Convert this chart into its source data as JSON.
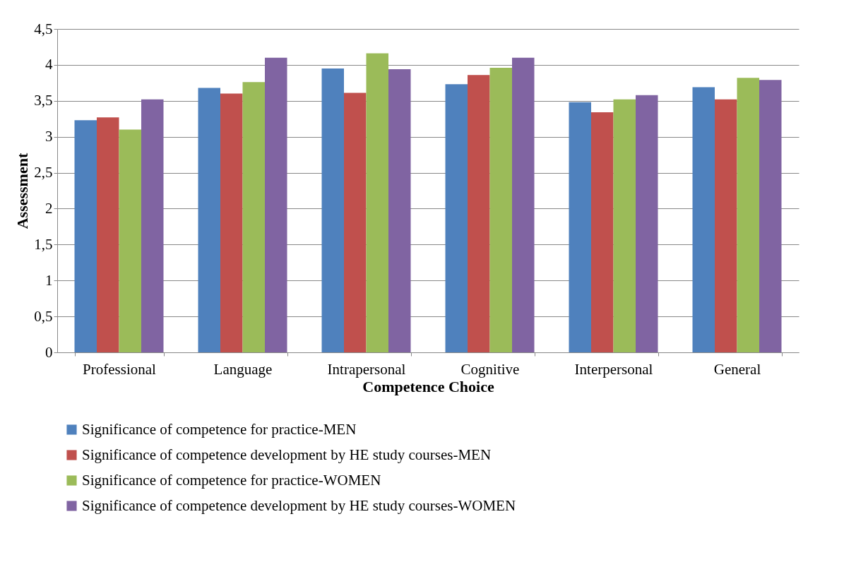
{
  "chart_data": {
    "type": "bar",
    "xlabel": "Competence Choice",
    "ylabel": "Assessment",
    "categories": [
      "Professional",
      "Language",
      "Intrapersonal",
      "Cognitive",
      "Interpersonal",
      "General"
    ],
    "series": [
      {
        "name": "Significance of competence for practice-MEN",
        "color": "#4f81bd",
        "values": [
          3.23,
          3.68,
          3.95,
          3.73,
          3.48,
          3.69
        ]
      },
      {
        "name": "Significance of competence development by HE study courses-MEN",
        "color": "#c0504d",
        "values": [
          3.27,
          3.6,
          3.61,
          3.86,
          3.34,
          3.52
        ]
      },
      {
        "name": "Significance of competence for practice-WOMEN",
        "color": "#9bbb59",
        "values": [
          3.1,
          3.76,
          4.16,
          3.96,
          3.52,
          3.82
        ]
      },
      {
        "name": "Significance of competence development by HE study courses-WOMEN",
        "color": "#8064a2",
        "values": [
          3.52,
          4.1,
          3.94,
          4.1,
          3.58,
          3.79
        ]
      }
    ],
    "ylim": [
      0,
      4.5
    ],
    "yticks": [
      0,
      {
        "value": 0.5,
        "label": "0,5"
      },
      1,
      {
        "value": 1.5,
        "label": "1,5"
      },
      2,
      {
        "value": 2.5,
        "label": "2,5"
      },
      3,
      {
        "value": 3.5,
        "label": "3,5"
      },
      4,
      {
        "value": 4.5,
        "label": "4,5"
      }
    ],
    "grid": "y",
    "legend": "bottom"
  }
}
